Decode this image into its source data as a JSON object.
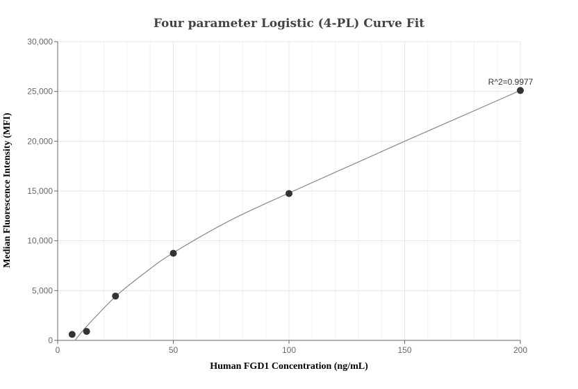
{
  "chart_data": {
    "type": "scatter",
    "title": "Four parameter Logistic (4-PL) Curve Fit",
    "xlabel": "Human FGD1 Concentration (ng/mL)",
    "ylabel": "Median Fluorescence Intensity (MFI)",
    "xlim": [
      0,
      200
    ],
    "ylim": [
      0,
      30000
    ],
    "x_ticks": [
      0,
      50,
      100,
      150,
      200
    ],
    "x_tick_labels": [
      "0",
      "50",
      "100",
      "150",
      "200"
    ],
    "y_ticks": [
      0,
      5000,
      10000,
      15000,
      20000,
      25000,
      30000
    ],
    "y_tick_labels": [
      "0",
      "5,000",
      "10,000",
      "15,000",
      "20,000",
      "25,000",
      "30,000"
    ],
    "grid": true,
    "series": [
      {
        "points": [
          {
            "x": 6.25,
            "y": 600
          },
          {
            "x": 12.5,
            "y": 900
          },
          {
            "x": 25,
            "y": 4450
          },
          {
            "x": 50,
            "y": 8750
          },
          {
            "x": 100,
            "y": 14750
          },
          {
            "x": 200,
            "y": 25100
          }
        ],
        "color": "#333333"
      }
    ],
    "fit_curve": {
      "color": "#888888",
      "points": [
        {
          "x": 7.5,
          "y": 0
        },
        {
          "x": 12.5,
          "y": 1400
        },
        {
          "x": 25,
          "y": 4400
        },
        {
          "x": 37.5,
          "y": 6750
        },
        {
          "x": 50,
          "y": 8800
        },
        {
          "x": 75,
          "y": 12100
        },
        {
          "x": 100,
          "y": 14800
        },
        {
          "x": 125,
          "y": 17400
        },
        {
          "x": 150,
          "y": 20000
        },
        {
          "x": 175,
          "y": 22550
        },
        {
          "x": 200,
          "y": 25100
        }
      ]
    },
    "annotation": {
      "text": "R^2=0.9977",
      "x": 200,
      "y": 25100
    }
  }
}
